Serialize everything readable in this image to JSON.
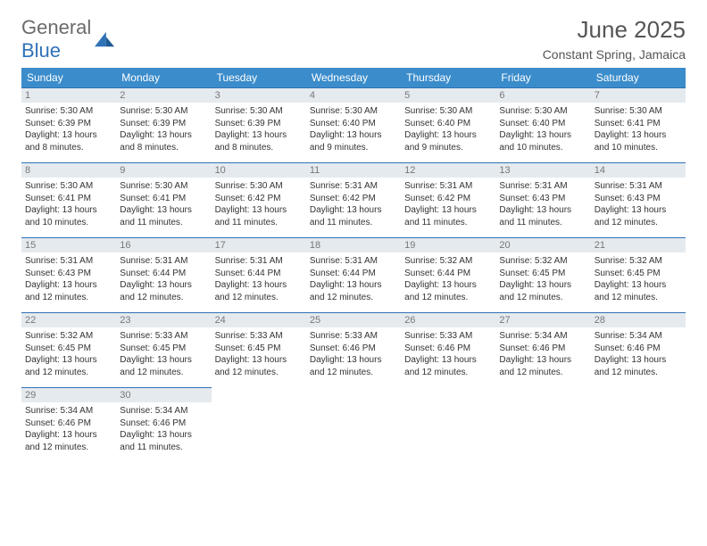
{
  "logo": {
    "text_gray": "General",
    "text_blue": "Blue"
  },
  "title": "June 2025",
  "subtitle": "Constant Spring, Jamaica",
  "colors": {
    "header_bg": "#3b8ccb",
    "border": "#2f72b8",
    "date_bg": "#e5eaee",
    "text": "#333333",
    "muted": "#777777",
    "logo_gray": "#6b6b6b",
    "logo_blue": "#2f72b8",
    "background": "#ffffff"
  },
  "dayNames": [
    "Sunday",
    "Monday",
    "Tuesday",
    "Wednesday",
    "Thursday",
    "Friday",
    "Saturday"
  ],
  "startWeekday": 0,
  "days": [
    {
      "n": 1,
      "sunrise": "5:30 AM",
      "sunset": "6:39 PM",
      "dayH": 13,
      "dayM": 8
    },
    {
      "n": 2,
      "sunrise": "5:30 AM",
      "sunset": "6:39 PM",
      "dayH": 13,
      "dayM": 8
    },
    {
      "n": 3,
      "sunrise": "5:30 AM",
      "sunset": "6:39 PM",
      "dayH": 13,
      "dayM": 8
    },
    {
      "n": 4,
      "sunrise": "5:30 AM",
      "sunset": "6:40 PM",
      "dayH": 13,
      "dayM": 9
    },
    {
      "n": 5,
      "sunrise": "5:30 AM",
      "sunset": "6:40 PM",
      "dayH": 13,
      "dayM": 9
    },
    {
      "n": 6,
      "sunrise": "5:30 AM",
      "sunset": "6:40 PM",
      "dayH": 13,
      "dayM": 10
    },
    {
      "n": 7,
      "sunrise": "5:30 AM",
      "sunset": "6:41 PM",
      "dayH": 13,
      "dayM": 10
    },
    {
      "n": 8,
      "sunrise": "5:30 AM",
      "sunset": "6:41 PM",
      "dayH": 13,
      "dayM": 10
    },
    {
      "n": 9,
      "sunrise": "5:30 AM",
      "sunset": "6:41 PM",
      "dayH": 13,
      "dayM": 11
    },
    {
      "n": 10,
      "sunrise": "5:30 AM",
      "sunset": "6:42 PM",
      "dayH": 13,
      "dayM": 11
    },
    {
      "n": 11,
      "sunrise": "5:31 AM",
      "sunset": "6:42 PM",
      "dayH": 13,
      "dayM": 11
    },
    {
      "n": 12,
      "sunrise": "5:31 AM",
      "sunset": "6:42 PM",
      "dayH": 13,
      "dayM": 11
    },
    {
      "n": 13,
      "sunrise": "5:31 AM",
      "sunset": "6:43 PM",
      "dayH": 13,
      "dayM": 11
    },
    {
      "n": 14,
      "sunrise": "5:31 AM",
      "sunset": "6:43 PM",
      "dayH": 13,
      "dayM": 12
    },
    {
      "n": 15,
      "sunrise": "5:31 AM",
      "sunset": "6:43 PM",
      "dayH": 13,
      "dayM": 12
    },
    {
      "n": 16,
      "sunrise": "5:31 AM",
      "sunset": "6:44 PM",
      "dayH": 13,
      "dayM": 12
    },
    {
      "n": 17,
      "sunrise": "5:31 AM",
      "sunset": "6:44 PM",
      "dayH": 13,
      "dayM": 12
    },
    {
      "n": 18,
      "sunrise": "5:31 AM",
      "sunset": "6:44 PM",
      "dayH": 13,
      "dayM": 12
    },
    {
      "n": 19,
      "sunrise": "5:32 AM",
      "sunset": "6:44 PM",
      "dayH": 13,
      "dayM": 12
    },
    {
      "n": 20,
      "sunrise": "5:32 AM",
      "sunset": "6:45 PM",
      "dayH": 13,
      "dayM": 12
    },
    {
      "n": 21,
      "sunrise": "5:32 AM",
      "sunset": "6:45 PM",
      "dayH": 13,
      "dayM": 12
    },
    {
      "n": 22,
      "sunrise": "5:32 AM",
      "sunset": "6:45 PM",
      "dayH": 13,
      "dayM": 12
    },
    {
      "n": 23,
      "sunrise": "5:33 AM",
      "sunset": "6:45 PM",
      "dayH": 13,
      "dayM": 12
    },
    {
      "n": 24,
      "sunrise": "5:33 AM",
      "sunset": "6:45 PM",
      "dayH": 13,
      "dayM": 12
    },
    {
      "n": 25,
      "sunrise": "5:33 AM",
      "sunset": "6:46 PM",
      "dayH": 13,
      "dayM": 12
    },
    {
      "n": 26,
      "sunrise": "5:33 AM",
      "sunset": "6:46 PM",
      "dayH": 13,
      "dayM": 12
    },
    {
      "n": 27,
      "sunrise": "5:34 AM",
      "sunset": "6:46 PM",
      "dayH": 13,
      "dayM": 12
    },
    {
      "n": 28,
      "sunrise": "5:34 AM",
      "sunset": "6:46 PM",
      "dayH": 13,
      "dayM": 12
    },
    {
      "n": 29,
      "sunrise": "5:34 AM",
      "sunset": "6:46 PM",
      "dayH": 13,
      "dayM": 12
    },
    {
      "n": 30,
      "sunrise": "5:34 AM",
      "sunset": "6:46 PM",
      "dayH": 13,
      "dayM": 11
    }
  ],
  "labels": {
    "sunrise": "Sunrise:",
    "sunset": "Sunset:",
    "daylight": "Daylight:",
    "hours": "hours",
    "and": "and",
    "minutes": "minutes."
  }
}
